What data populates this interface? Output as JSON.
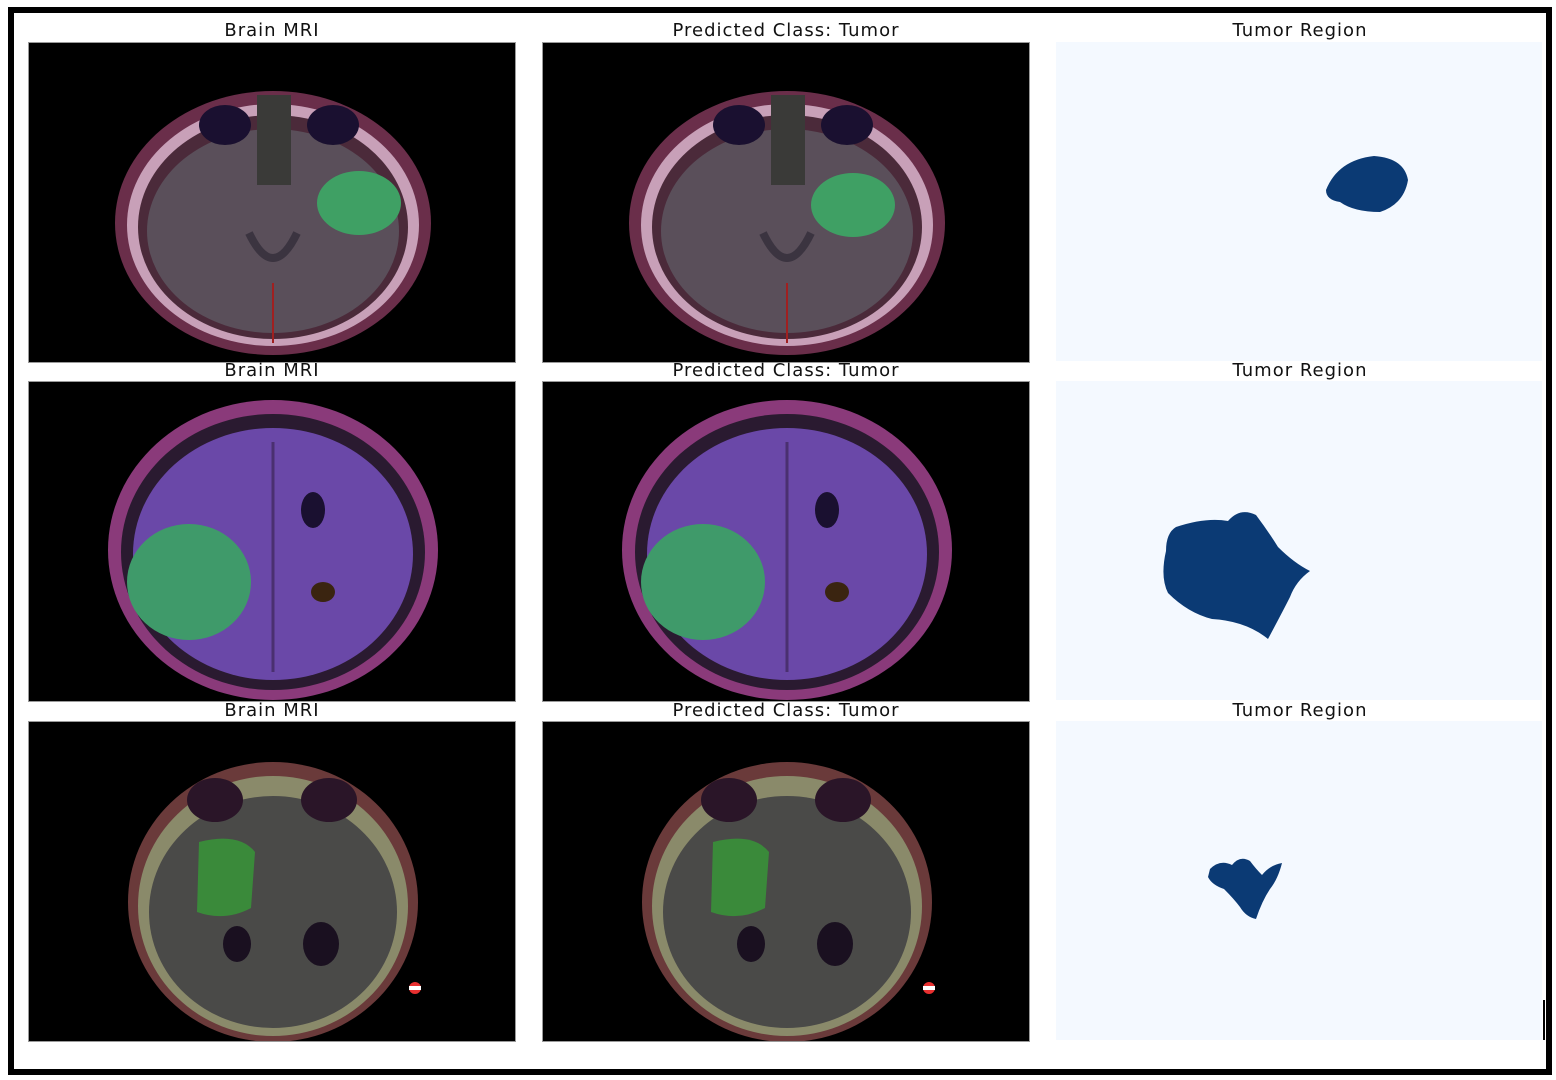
{
  "colors": {
    "mask_background": "#f4f9ff",
    "mask_region": "#0b3a74",
    "mri_background": "#000000"
  },
  "columns": [
    "original-mri",
    "predicted-overlay",
    "tumor-mask"
  ],
  "rows": [
    {
      "title_mri": "Brain MRI",
      "title_prediction": "Predicted Class: Tumor",
      "title_region": "Tumor Region"
    },
    {
      "title_mri": "Brain MRI",
      "title_prediction": "Predicted Class: Tumor",
      "title_region": "Tumor Region"
    },
    {
      "title_mri": "Brain MRI",
      "title_prediction": "Predicted Class: Tumor",
      "title_region": "Tumor Region"
    }
  ]
}
